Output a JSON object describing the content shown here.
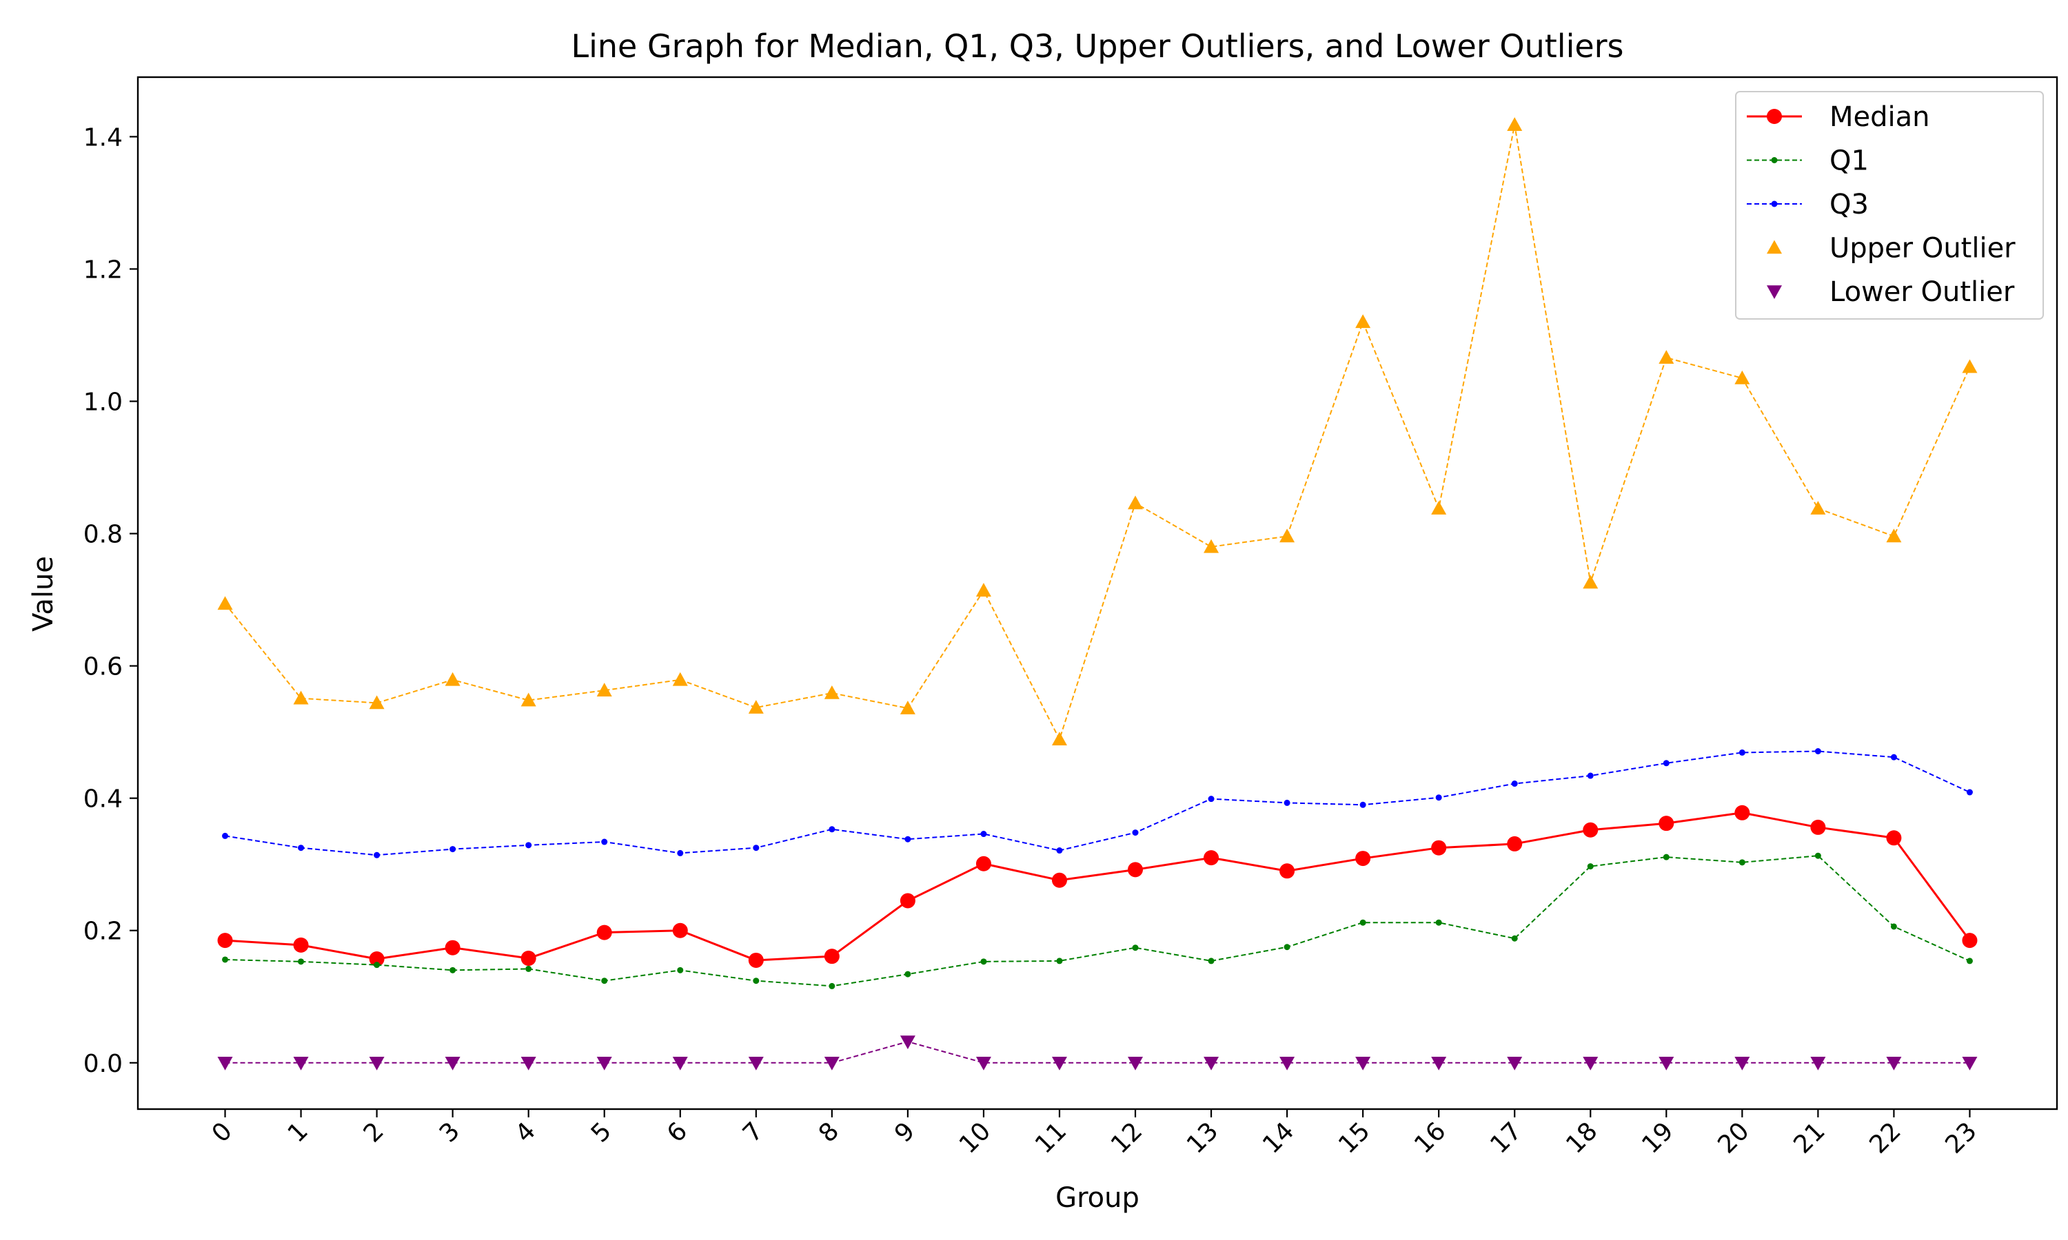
{
  "chart_data": {
    "type": "line",
    "title": "Line Graph for Median, Q1, Q3, Upper Outliers, and Lower Outliers",
    "xlabel": "Group",
    "ylabel": "Value",
    "x": [
      0,
      1,
      2,
      3,
      4,
      5,
      6,
      7,
      8,
      9,
      10,
      11,
      12,
      13,
      14,
      15,
      16,
      17,
      18,
      19,
      20,
      21,
      22,
      23
    ],
    "xticks": [
      "0",
      "1",
      "2",
      "3",
      "4",
      "5",
      "6",
      "7",
      "8",
      "9",
      "10",
      "11",
      "12",
      "13",
      "14",
      "15",
      "16",
      "17",
      "18",
      "19",
      "20",
      "21",
      "22",
      "23"
    ],
    "yticks": [
      0.0,
      0.2,
      0.4,
      0.6,
      0.8,
      1.0,
      1.2,
      1.4
    ],
    "ylim": [
      -0.07,
      1.49
    ],
    "xlim": [
      -1.15,
      24.15
    ],
    "grid": false,
    "legend_position": "upper right",
    "series": [
      {
        "name": "Median",
        "color": "#ff0000",
        "line": "solid",
        "marker": "circle",
        "values": [
          0.185,
          0.178,
          0.157,
          0.174,
          0.158,
          0.197,
          0.2,
          0.155,
          0.161,
          0.245,
          0.301,
          0.276,
          0.292,
          0.31,
          0.29,
          0.309,
          0.325,
          0.331,
          0.352,
          0.362,
          0.378,
          0.356,
          0.34,
          0.185
        ]
      },
      {
        "name": "Q1",
        "color": "#008000",
        "line": "dashed",
        "marker": "point",
        "values": [
          0.156,
          0.153,
          0.148,
          0.14,
          0.142,
          0.124,
          0.14,
          0.124,
          0.116,
          0.134,
          0.153,
          0.154,
          0.174,
          0.154,
          0.175,
          0.212,
          0.212,
          0.188,
          0.297,
          0.311,
          0.303,
          0.313,
          0.206,
          0.154
        ]
      },
      {
        "name": "Q3",
        "color": "#0000ff",
        "line": "dashed",
        "marker": "point",
        "values": [
          0.343,
          0.325,
          0.314,
          0.323,
          0.329,
          0.334,
          0.317,
          0.325,
          0.353,
          0.338,
          0.346,
          0.321,
          0.348,
          0.399,
          0.393,
          0.39,
          0.401,
          0.422,
          0.434,
          0.453,
          0.469,
          0.471,
          0.462,
          0.409
        ]
      },
      {
        "name": "Upper Outlier",
        "color": "#ffa500",
        "line": "dashed",
        "marker": "triangle-up",
        "values": [
          0.694,
          0.551,
          0.544,
          0.579,
          0.548,
          0.563,
          0.579,
          0.537,
          0.559,
          0.536,
          0.714,
          0.489,
          0.846,
          0.78,
          0.796,
          1.12,
          0.838,
          1.418,
          0.726,
          1.066,
          1.035,
          0.838,
          0.796,
          1.052
        ]
      },
      {
        "name": "Lower Outlier",
        "color": "#800080",
        "line": "dashed",
        "marker": "triangle-down",
        "values": [
          0,
          0,
          0,
          0,
          0,
          0,
          0,
          0,
          0,
          0.032,
          0,
          0,
          0,
          0,
          0,
          0,
          0,
          0,
          0,
          0,
          0,
          0,
          0,
          0
        ]
      }
    ]
  }
}
